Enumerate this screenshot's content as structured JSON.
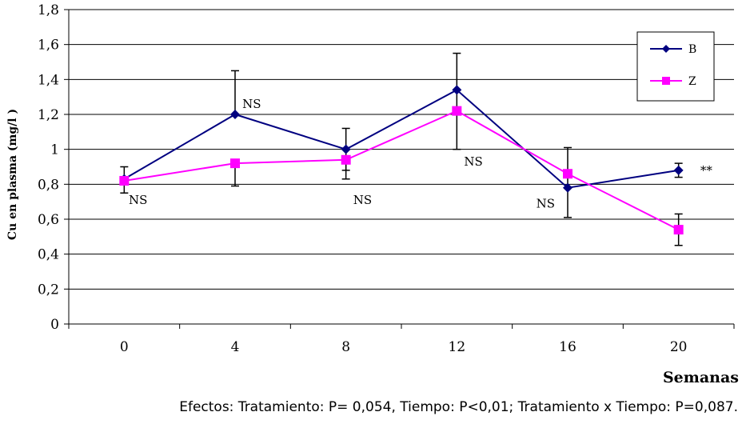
{
  "chart_data": {
    "type": "line",
    "categories": [
      "0",
      "4",
      "8",
      "12",
      "16",
      "20"
    ],
    "x": [
      0,
      4,
      8,
      12,
      16,
      20
    ],
    "ylabel": "Cu en plasma (mg/l )",
    "xlabel": "Semanas",
    "ylim": [
      0,
      1.8
    ],
    "yticks": [
      "0",
      "0,2",
      "0,4",
      "0,6",
      "0,8",
      "1",
      "1,2",
      "1,4",
      "1,6",
      "1,8"
    ],
    "grid": true,
    "legend_position": "top-right",
    "series": [
      {
        "name": "B",
        "color": "#000080",
        "marker": "diamond",
        "values": [
          0.83,
          1.2,
          1.0,
          1.34,
          0.78,
          0.88
        ],
        "err_low": [
          0.83,
          1.2,
          0.88,
          1.0,
          0.61,
          0.84
        ],
        "err_high": [
          0.9,
          1.45,
          1.12,
          1.55,
          1.01,
          0.92
        ]
      },
      {
        "name": "Z",
        "color": "#FF00FF",
        "marker": "square",
        "values": [
          0.82,
          0.92,
          0.94,
          1.22,
          0.86,
          0.54
        ],
        "err_low": [
          0.75,
          0.79,
          0.83,
          1.22,
          0.86,
          0.45
        ],
        "err_high": [
          0.82,
          0.92,
          0.94,
          1.22,
          0.86,
          0.63
        ]
      }
    ],
    "annotations": [
      {
        "text": "NS",
        "x": 0.5,
        "y": 0.71
      },
      {
        "text": "NS",
        "x": 4.6,
        "y": 1.26
      },
      {
        "text": "NS",
        "x": 8.6,
        "y": 0.71
      },
      {
        "text": "NS",
        "x": 12.6,
        "y": 0.93
      },
      {
        "text": "NS",
        "x": 15.2,
        "y": 0.69
      },
      {
        "text": "**",
        "x": 21.0,
        "y": 0.88
      }
    ],
    "caption": "Efectos: Tratamiento: P= 0,054, Tiempo: P<0,01; Tratamiento x Tiempo: P=0,087."
  }
}
